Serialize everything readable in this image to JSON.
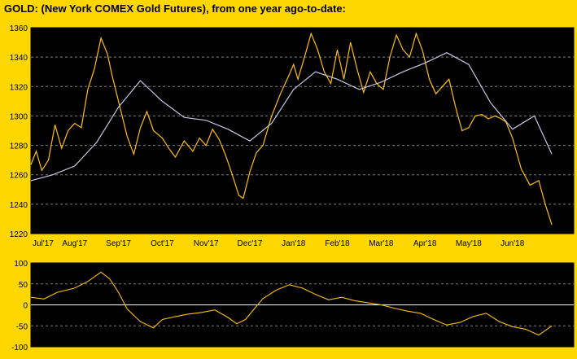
{
  "header": {
    "title": "GOLD:  (New York COMEX Gold Futures), from one year ago-to-date:"
  },
  "colors": {
    "background": "#FFD700",
    "plot_bg": "#000000",
    "price": "#FFC000",
    "average": "#C8C8E6",
    "grid": "#808080",
    "zero": "#FFFFFF"
  },
  "chart_data": [
    {
      "type": "line",
      "ylim": [
        1220,
        1360
      ],
      "yticks": [
        "1220",
        "1240",
        "1260",
        "1280",
        "1300",
        "1320",
        "1340",
        "1360"
      ],
      "xticks": [
        "Jul'17",
        "Aug'17",
        "Sep'17",
        "Oct'17",
        "Nov'17",
        "Dec'17",
        "Jan'18",
        "Feb'18",
        "Mar'18",
        "Apr'18",
        "May'18",
        "Jun'18"
      ],
      "grid": true,
      "series": [
        {
          "role": "price",
          "x": [
            0,
            0.12,
            0.25,
            0.4,
            0.55,
            0.7,
            0.85,
            1,
            1.15,
            1.3,
            1.45,
            1.6,
            1.75,
            1.85,
            2,
            2.2,
            2.35,
            2.5,
            2.65,
            2.8,
            3,
            3.15,
            3.3,
            3.5,
            3.7,
            3.85,
            4,
            4.15,
            4.3,
            4.45,
            4.6,
            4.75,
            4.85,
            5,
            5.15,
            5.3,
            5.5,
            5.7,
            5.9,
            6,
            6.1,
            6.25,
            6.4,
            6.55,
            6.7,
            6.85,
            7,
            7.15,
            7.3,
            7.45,
            7.6,
            7.75,
            7.9,
            8.05,
            8.2,
            8.35,
            8.5,
            8.65,
            8.8,
            8.95,
            9.1,
            9.25,
            9.4,
            9.55,
            9.7,
            9.85,
            10,
            10.15,
            10.3,
            10.45,
            10.6,
            10.75,
            10.85,
            11,
            11.2,
            11.4,
            11.6,
            11.75,
            11.9
          ],
          "y": [
            1267,
            1276,
            1263,
            1270,
            1294,
            1278,
            1290,
            1295,
            1292,
            1318,
            1332,
            1353,
            1342,
            1328,
            1310,
            1286,
            1274,
            1292,
            1303,
            1290,
            1285,
            1278,
            1272,
            1283,
            1276,
            1285,
            1280,
            1291,
            1284,
            1273,
            1260,
            1246,
            1244,
            1262,
            1275,
            1280,
            1300,
            1315,
            1328,
            1335,
            1325,
            1340,
            1356,
            1345,
            1330,
            1322,
            1345,
            1325,
            1350,
            1332,
            1316,
            1330,
            1322,
            1318,
            1340,
            1355,
            1345,
            1340,
            1356,
            1344,
            1325,
            1315,
            1320,
            1325,
            1306,
            1290,
            1292,
            1300,
            1301,
            1298,
            1300,
            1298,
            1296,
            1285,
            1264,
            1253,
            1256,
            1240,
            1226
          ]
        },
        {
          "role": "average",
          "x": [
            0,
            0.5,
            1,
            1.5,
            2,
            2.5,
            3,
            3.5,
            4,
            4.5,
            5,
            5.5,
            6,
            6.5,
            7,
            7.5,
            8,
            8.5,
            9,
            9.5,
            10,
            10.5,
            11,
            11.5,
            11.9
          ],
          "y": [
            1256,
            1260,
            1266,
            1282,
            1306,
            1324,
            1310,
            1299,
            1297,
            1291,
            1283,
            1295,
            1318,
            1330,
            1325,
            1318,
            1323,
            1330,
            1336,
            1343,
            1335,
            1309,
            1291,
            1300,
            1274
          ]
        }
      ]
    },
    {
      "type": "line",
      "ylim": [
        -100,
        100
      ],
      "yticks": [
        "-100",
        "-50",
        "0",
        "50",
        "100"
      ],
      "grid": true,
      "series": [
        {
          "role": "oscillator",
          "x": [
            0,
            0.3,
            0.6,
            1,
            1.3,
            1.6,
            1.8,
            2,
            2.2,
            2.5,
            2.8,
            3,
            3.3,
            3.6,
            3.9,
            4.2,
            4.5,
            4.7,
            4.9,
            5.1,
            5.3,
            5.6,
            5.9,
            6.2,
            6.5,
            6.8,
            7.1,
            7.4,
            7.7,
            8,
            8.3,
            8.6,
            8.9,
            9.2,
            9.5,
            9.8,
            10.1,
            10.4,
            10.7,
            11,
            11.3,
            11.6,
            11.9
          ],
          "y": [
            18,
            14,
            30,
            40,
            56,
            78,
            62,
            30,
            -10,
            -40,
            -55,
            -35,
            -28,
            -22,
            -18,
            -12,
            -30,
            -45,
            -35,
            -10,
            15,
            35,
            48,
            40,
            25,
            12,
            18,
            10,
            5,
            0,
            -8,
            -15,
            -20,
            -35,
            -48,
            -42,
            -28,
            -20,
            -40,
            -52,
            -58,
            -72,
            -50
          ]
        }
      ]
    }
  ]
}
